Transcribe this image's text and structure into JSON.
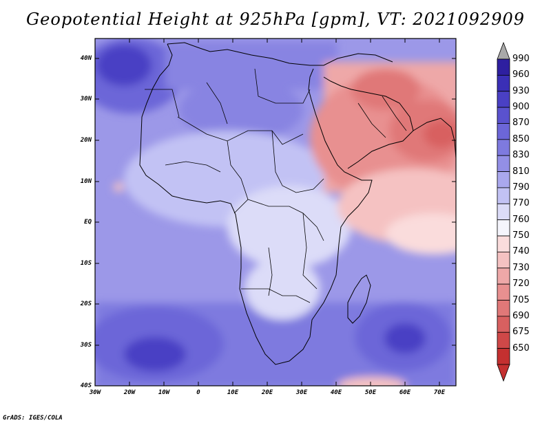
{
  "title": "Geopotential Height at 925hPa [gpm], VT: 2021092909",
  "footer": "GrADS: IGES/COLA",
  "map": {
    "lon_range": [
      -30,
      75
    ],
    "lat_range": [
      -40,
      45
    ],
    "lat_labels": [
      "40N",
      "30N",
      "20N",
      "10N",
      "EQ",
      "10S",
      "20S",
      "30S",
      "40S"
    ],
    "lon_labels": [
      "30W",
      "20W",
      "10W",
      "0",
      "10E",
      "20E",
      "30E",
      "40E",
      "50E",
      "60E",
      "70E"
    ]
  },
  "colorbar": {
    "levels": [
      "990",
      "960",
      "930",
      "900",
      "870",
      "850",
      "830",
      "810",
      "790",
      "770",
      "760",
      "750",
      "740",
      "730",
      "720",
      "705",
      "690",
      "675",
      "650"
    ],
    "colors": [
      "#2e1fa0",
      "#3a2fb6",
      "#4a40c4",
      "#5a52ce",
      "#6c66d8",
      "#7e7adf",
      "#938fe6",
      "#aaa8ee",
      "#c2c2f4",
      "#dcdcf8",
      "#f5f5fc",
      "#fadcdc",
      "#f5c2c2",
      "#eea8a8",
      "#e89090",
      "#e07878",
      "#d86060",
      "#cf4848",
      "#c43030"
    ],
    "top_arrow_color": "#a9a9a9",
    "bottom_arrow_color": "#c43030"
  }
}
